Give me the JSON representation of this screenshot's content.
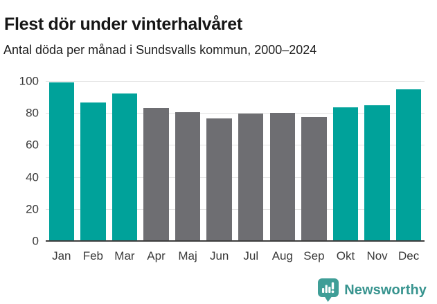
{
  "header": {
    "title": "Flest dör under vinterhalvåret",
    "subtitle": "Antal döda per månad i Sundsvalls kommun, 2000–2024"
  },
  "chart_data": {
    "type": "bar",
    "title": "Flest dör under vinterhalvåret",
    "subtitle": "Antal döda per månad i Sundsvalls kommun, 2000–2024",
    "categories": [
      "Jan",
      "Feb",
      "Mar",
      "Apr",
      "Maj",
      "Jun",
      "Jul",
      "Aug",
      "Sep",
      "Okt",
      "Nov",
      "Dec"
    ],
    "values": [
      99,
      86.5,
      92,
      83,
      80.5,
      76.5,
      79.5,
      80,
      77.5,
      83.5,
      85,
      95
    ],
    "bar_groups": [
      "winter",
      "winter",
      "winter",
      "summer",
      "summer",
      "summer",
      "summer",
      "summer",
      "summer",
      "winter",
      "winter",
      "winter"
    ],
    "series_colors": {
      "winter": "#00a29a",
      "summer": "#6e6e72"
    },
    "xlabel": "",
    "ylabel": "",
    "ylim": [
      0,
      100
    ],
    "yticks": [
      0,
      20,
      40,
      60,
      80,
      100
    ],
    "grid": true,
    "legend": "none",
    "gridline_color": "#e3e3e3",
    "axis_line_color": "#3d3d3d",
    "tick_label_color": "#3a3a3a"
  },
  "footer": {
    "brand": "Newsworthy",
    "logo_color": "#3f9e97",
    "text_color": "#38948f",
    "logo_glyph_color": "#ffffff"
  }
}
